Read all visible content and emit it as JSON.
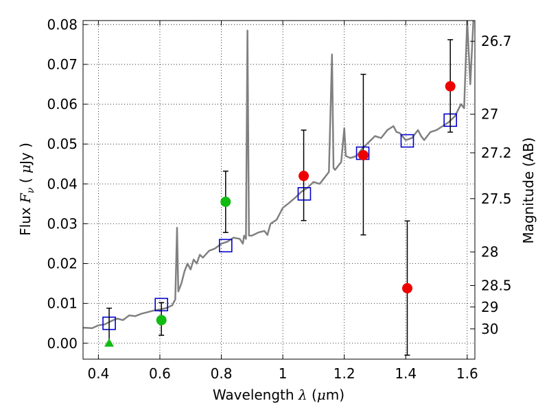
{
  "chart_data": {
    "type": "scatter",
    "title": "",
    "xlabel": "Wavelength  λ (μm)",
    "ylabel": "Flux  F_ν  ( μJy )",
    "ylabel_right": "Magnitude (AB)",
    "xlim": [
      0.35,
      1.625
    ],
    "ylim": [
      -0.004,
      0.081
    ],
    "grid": true,
    "x_ticks": [
      0.4,
      0.6,
      0.8,
      1.0,
      1.2,
      1.4,
      1.6
    ],
    "x_tick_labels": [
      "0.4",
      "0.6",
      "0.8",
      "1",
      "1.2",
      "1.4",
      "1.6"
    ],
    "y_ticks": [
      0.0,
      0.01,
      0.02,
      0.03,
      0.04,
      0.05,
      0.06,
      0.07,
      0.08
    ],
    "y_tick_labels": [
      "0.00",
      "0.01",
      "0.02",
      "0.03",
      "0.04",
      "0.05",
      "0.06",
      "0.07",
      "0.08"
    ],
    "right_ticks": [
      {
        "label": "26.7",
        "flux": 0.0758
      },
      {
        "label": "27",
        "flux": 0.0575
      },
      {
        "label": "27.2",
        "flux": 0.0478
      },
      {
        "label": "27.5",
        "flux": 0.0363
      },
      {
        "label": "28",
        "flux": 0.0229
      },
      {
        "label": "28.5",
        "flux": 0.0145
      },
      {
        "label": "29",
        "flux": 0.0091
      },
      {
        "label": "30",
        "flux": 0.0036
      }
    ],
    "series": [
      {
        "kind": "line",
        "color": "#808080",
        "points": [
          [
            0.35,
            0.0039
          ],
          [
            0.38,
            0.0038
          ],
          [
            0.4,
            0.0045
          ],
          [
            0.42,
            0.0047
          ],
          [
            0.44,
            0.0055
          ],
          [
            0.46,
            0.0062
          ],
          [
            0.48,
            0.0058
          ],
          [
            0.5,
            0.007
          ],
          [
            0.52,
            0.0068
          ],
          [
            0.54,
            0.0074
          ],
          [
            0.56,
            0.0078
          ],
          [
            0.58,
            0.0082
          ],
          [
            0.6,
            0.0085
          ],
          [
            0.62,
            0.0088
          ],
          [
            0.64,
            0.0095
          ],
          [
            0.65,
            0.011
          ],
          [
            0.656,
            0.029
          ],
          [
            0.66,
            0.013
          ],
          [
            0.67,
            0.015
          ],
          [
            0.68,
            0.018
          ],
          [
            0.69,
            0.02
          ],
          [
            0.7,
            0.0185
          ],
          [
            0.71,
            0.021
          ],
          [
            0.72,
            0.02
          ],
          [
            0.73,
            0.0222
          ],
          [
            0.74,
            0.0215
          ],
          [
            0.76,
            0.0232
          ],
          [
            0.78,
            0.0238
          ],
          [
            0.8,
            0.025
          ],
          [
            0.82,
            0.0255
          ],
          [
            0.84,
            0.0265
          ],
          [
            0.86,
            0.0262
          ],
          [
            0.87,
            0.025
          ],
          [
            0.874,
            0.027
          ],
          [
            0.88,
            0.0262
          ],
          [
            0.885,
            0.0785
          ],
          [
            0.89,
            0.027
          ],
          [
            0.9,
            0.027
          ],
          [
            0.92,
            0.0278
          ],
          [
            0.94,
            0.0282
          ],
          [
            0.95,
            0.0272
          ],
          [
            0.96,
            0.03
          ],
          [
            0.98,
            0.031
          ],
          [
            1.0,
            0.034
          ],
          [
            1.02,
            0.0352
          ],
          [
            1.04,
            0.0365
          ],
          [
            1.06,
            0.038
          ],
          [
            1.08,
            0.039
          ],
          [
            1.1,
            0.0405
          ],
          [
            1.12,
            0.04
          ],
          [
            1.14,
            0.042
          ],
          [
            1.15,
            0.043
          ],
          [
            1.16,
            0.0725
          ],
          [
            1.165,
            0.044
          ],
          [
            1.17,
            0.0435
          ],
          [
            1.18,
            0.0445
          ],
          [
            1.19,
            0.0455
          ],
          [
            1.2,
            0.054
          ],
          [
            1.205,
            0.047
          ],
          [
            1.22,
            0.0465
          ],
          [
            1.24,
            0.047
          ],
          [
            1.26,
            0.049
          ],
          [
            1.28,
            0.0505
          ],
          [
            1.3,
            0.052
          ],
          [
            1.32,
            0.0515
          ],
          [
            1.34,
            0.0535
          ],
          [
            1.36,
            0.0545
          ],
          [
            1.37,
            0.053
          ],
          [
            1.38,
            0.0528
          ],
          [
            1.4,
            0.051
          ],
          [
            1.42,
            0.0515
          ],
          [
            1.44,
            0.0535
          ],
          [
            1.45,
            0.052
          ],
          [
            1.46,
            0.051
          ],
          [
            1.48,
            0.053
          ],
          [
            1.5,
            0.0535
          ],
          [
            1.52,
            0.0545
          ],
          [
            1.54,
            0.0555
          ],
          [
            1.56,
            0.057
          ],
          [
            1.58,
            0.06
          ],
          [
            1.59,
            0.059
          ],
          [
            1.6,
            0.081
          ],
          [
            1.61,
            0.065
          ],
          [
            1.62,
            0.081
          ]
        ]
      },
      {
        "kind": "open-square",
        "color": "#0000cc",
        "points": [
          [
            0.435,
            0.005
          ],
          [
            0.605,
            0.0097
          ],
          [
            0.814,
            0.0245
          ],
          [
            1.07,
            0.0375
          ],
          [
            1.26,
            0.0477
          ],
          [
            1.405,
            0.0508
          ],
          [
            1.545,
            0.056
          ]
        ]
      },
      {
        "kind": "filled-circle",
        "color": "#ee0000",
        "points": [
          [
            1.068,
            0.042,
            0.0308,
            0.0535
          ],
          [
            1.262,
            0.0472,
            0.0272,
            0.0675
          ],
          [
            1.405,
            0.0138,
            -0.003,
            0.0307
          ],
          [
            1.545,
            0.0645,
            0.053,
            0.0762
          ]
        ]
      },
      {
        "kind": "filled-circle",
        "color": "#11bb11",
        "points": [
          [
            0.605,
            0.0058,
            0.002,
            0.0102
          ],
          [
            0.814,
            0.0355,
            0.0278,
            0.0432
          ]
        ]
      },
      {
        "kind": "triangle",
        "color": "#11bb11",
        "points": [
          [
            0.435,
            0.0
          ]
        ],
        "errorbar_top": 0.0088
      }
    ]
  }
}
